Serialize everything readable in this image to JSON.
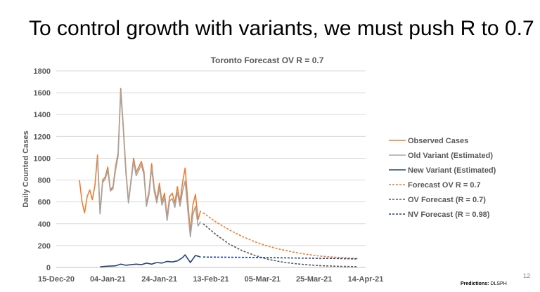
{
  "slide": {
    "title": "To control growth with variants, we must push R to 0.7",
    "page_number": "12",
    "credit_label": "Predictions:",
    "credit_value": "DLSPH"
  },
  "chart_data": {
    "type": "line",
    "title": "Toronto Forecast OV R = 0.7",
    "xlabel": "",
    "ylabel": "Daily Counted Cases",
    "x_ticks": [
      "15-Dec-20",
      "04-Jan-21",
      "24-Jan-21",
      "13-Feb-21",
      "05-Mar-21",
      "25-Mar-21",
      "14-Apr-21"
    ],
    "x_range": [
      "2020-12-15",
      "2021-04-14"
    ],
    "ylim": [
      0,
      1800
    ],
    "y_ticks": [
      0,
      200,
      400,
      600,
      800,
      1000,
      1200,
      1400,
      1600,
      1800
    ],
    "grid": "horizontal",
    "legend_position": "right",
    "series": [
      {
        "name": "Observed Cases",
        "color": "#ed7d31",
        "dash": "solid",
        "points": [
          [
            "2020-12-24",
            800
          ],
          [
            "2020-12-25",
            600
          ],
          [
            "2020-12-26",
            500
          ],
          [
            "2020-12-27",
            650
          ],
          [
            "2020-12-28",
            710
          ],
          [
            "2020-12-29",
            620
          ],
          [
            "2020-12-30",
            750
          ],
          [
            "2020-12-31",
            1030
          ],
          [
            "2021-01-01",
            500
          ],
          [
            "2021-01-02",
            800
          ],
          [
            "2021-01-03",
            830
          ],
          [
            "2021-01-04",
            920
          ],
          [
            "2021-01-05",
            710
          ],
          [
            "2021-01-06",
            740
          ],
          [
            "2021-01-07",
            920
          ],
          [
            "2021-01-08",
            1050
          ],
          [
            "2021-01-09",
            1640
          ],
          [
            "2021-01-10",
            1300
          ],
          [
            "2021-01-11",
            900
          ],
          [
            "2021-01-12",
            600
          ],
          [
            "2021-01-13",
            800
          ],
          [
            "2021-01-14",
            1000
          ],
          [
            "2021-01-15",
            870
          ],
          [
            "2021-01-16",
            920
          ],
          [
            "2021-01-17",
            970
          ],
          [
            "2021-01-18",
            880
          ],
          [
            "2021-01-19",
            580
          ],
          [
            "2021-01-20",
            700
          ],
          [
            "2021-01-21",
            950
          ],
          [
            "2021-01-22",
            730
          ],
          [
            "2021-01-23",
            620
          ],
          [
            "2021-01-24",
            770
          ],
          [
            "2021-01-25",
            600
          ],
          [
            "2021-01-26",
            680
          ],
          [
            "2021-01-27",
            460
          ],
          [
            "2021-01-28",
            650
          ],
          [
            "2021-01-29",
            680
          ],
          [
            "2021-01-30",
            590
          ],
          [
            "2021-01-31",
            740
          ],
          [
            "2021-02-01",
            600
          ],
          [
            "2021-02-02",
            780
          ],
          [
            "2021-02-03",
            910
          ],
          [
            "2021-02-05",
            320
          ],
          [
            "2021-02-06",
            570
          ],
          [
            "2021-02-07",
            670
          ],
          [
            "2021-02-08",
            440
          ],
          [
            "2021-02-09",
            520
          ]
        ]
      },
      {
        "name": "Old Variant (Estimated)",
        "color": "#a5a5a5",
        "dash": "solid",
        "points": [
          [
            "2020-12-31",
            1000
          ],
          [
            "2021-01-01",
            490
          ],
          [
            "2021-01-02",
            780
          ],
          [
            "2021-01-03",
            810
          ],
          [
            "2021-01-04",
            890
          ],
          [
            "2021-01-05",
            700
          ],
          [
            "2021-01-06",
            720
          ],
          [
            "2021-01-07",
            890
          ],
          [
            "2021-01-08",
            1020
          ],
          [
            "2021-01-09",
            1610
          ],
          [
            "2021-01-10",
            1270
          ],
          [
            "2021-01-11",
            870
          ],
          [
            "2021-01-12",
            590
          ],
          [
            "2021-01-13",
            780
          ],
          [
            "2021-01-14",
            970
          ],
          [
            "2021-01-15",
            840
          ],
          [
            "2021-01-16",
            890
          ],
          [
            "2021-01-17",
            940
          ],
          [
            "2021-01-18",
            850
          ],
          [
            "2021-01-19",
            560
          ],
          [
            "2021-01-20",
            670
          ],
          [
            "2021-01-21",
            910
          ],
          [
            "2021-01-22",
            700
          ],
          [
            "2021-01-23",
            590
          ],
          [
            "2021-01-24",
            730
          ],
          [
            "2021-01-25",
            570
          ],
          [
            "2021-01-26",
            640
          ],
          [
            "2021-01-27",
            430
          ],
          [
            "2021-01-28",
            610
          ],
          [
            "2021-01-29",
            630
          ],
          [
            "2021-01-30",
            550
          ],
          [
            "2021-01-31",
            690
          ],
          [
            "2021-02-01",
            560
          ],
          [
            "2021-02-02",
            700
          ],
          [
            "2021-02-03",
            790
          ],
          [
            "2021-02-05",
            280
          ],
          [
            "2021-02-06",
            480
          ],
          [
            "2021-02-07",
            560
          ],
          [
            "2021-02-08",
            380
          ],
          [
            "2021-02-09",
            420
          ]
        ]
      },
      {
        "name": "New Variant (Estimated)",
        "color": "#264478",
        "dash": "solid",
        "points": [
          [
            "2021-01-01",
            5
          ],
          [
            "2021-01-03",
            10
          ],
          [
            "2021-01-05",
            12
          ],
          [
            "2021-01-07",
            15
          ],
          [
            "2021-01-09",
            30
          ],
          [
            "2021-01-11",
            20
          ],
          [
            "2021-01-13",
            25
          ],
          [
            "2021-01-15",
            30
          ],
          [
            "2021-01-17",
            25
          ],
          [
            "2021-01-19",
            40
          ],
          [
            "2021-01-21",
            30
          ],
          [
            "2021-01-23",
            45
          ],
          [
            "2021-01-25",
            40
          ],
          [
            "2021-01-27",
            55
          ],
          [
            "2021-01-29",
            50
          ],
          [
            "2021-01-31",
            60
          ],
          [
            "2021-02-02",
            90
          ],
          [
            "2021-02-03",
            115
          ],
          [
            "2021-02-05",
            45
          ],
          [
            "2021-02-07",
            110
          ],
          [
            "2021-02-09",
            95
          ]
        ]
      },
      {
        "name": "Forecast OV R = 0.7",
        "color": "#ed7d31",
        "dash": "dashed",
        "points": [
          [
            "2021-02-10",
            500
          ],
          [
            "2021-02-15",
            415
          ],
          [
            "2021-02-20",
            345
          ],
          [
            "2021-02-25",
            285
          ],
          [
            "2021-03-02",
            235
          ],
          [
            "2021-03-07",
            195
          ],
          [
            "2021-03-12",
            165
          ],
          [
            "2021-03-17",
            140
          ],
          [
            "2021-03-22",
            120
          ],
          [
            "2021-03-27",
            105
          ],
          [
            "2021-04-01",
            95
          ],
          [
            "2021-04-06",
            88
          ],
          [
            "2021-04-11",
            82
          ]
        ]
      },
      {
        "name": "OV Forecast (R = 0.7)",
        "color": "#595959",
        "dash": "dashed",
        "points": [
          [
            "2021-02-10",
            400
          ],
          [
            "2021-02-15",
            300
          ],
          [
            "2021-02-20",
            215
          ],
          [
            "2021-02-25",
            155
          ],
          [
            "2021-03-02",
            110
          ],
          [
            "2021-03-07",
            75
          ],
          [
            "2021-03-12",
            52
          ],
          [
            "2021-03-17",
            36
          ],
          [
            "2021-03-22",
            25
          ],
          [
            "2021-03-27",
            17
          ],
          [
            "2021-04-01",
            12
          ],
          [
            "2021-04-06",
            9
          ],
          [
            "2021-04-11",
            7
          ]
        ]
      },
      {
        "name": "NV Forecast (R = 0.98)",
        "color": "#1f3f99",
        "dash": "dashed",
        "points": [
          [
            "2021-02-10",
            95
          ],
          [
            "2021-02-20",
            93
          ],
          [
            "2021-03-02",
            91
          ],
          [
            "2021-03-12",
            88
          ],
          [
            "2021-03-22",
            85
          ],
          [
            "2021-04-01",
            82
          ],
          [
            "2021-04-11",
            78
          ]
        ]
      }
    ]
  }
}
